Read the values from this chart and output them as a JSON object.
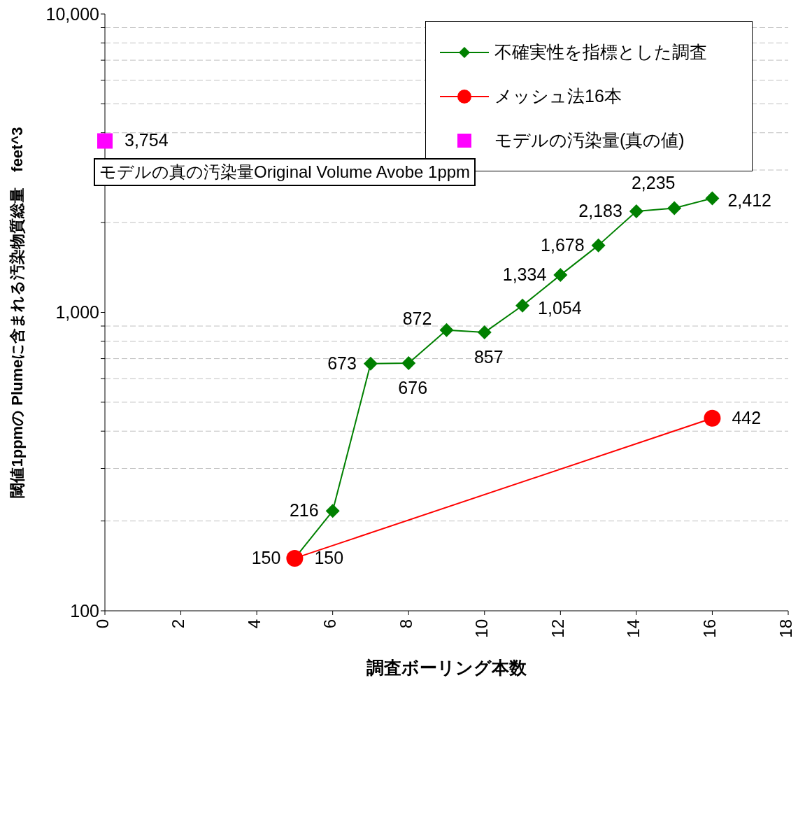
{
  "chart_data": {
    "type": "line",
    "xlabel": "調査ボーリング本数",
    "ylabel": "閾値1ppmの Plumeに含まれる汚染物質総量　feet^3",
    "log": "y",
    "xlim": [
      0,
      18
    ],
    "xticks": [
      0,
      2,
      4,
      6,
      8,
      10,
      12,
      14,
      16,
      18
    ],
    "ylim": [
      100,
      10000
    ],
    "yticks": [
      {
        "value": 100,
        "label": "100"
      },
      {
        "value": 200,
        "label": null
      },
      {
        "value": 300,
        "label": null
      },
      {
        "value": 400,
        "label": null
      },
      {
        "value": 500,
        "label": null
      },
      {
        "value": 600,
        "label": null
      },
      {
        "value": 700,
        "label": null
      },
      {
        "value": 800,
        "label": null
      },
      {
        "value": 900,
        "label": null
      },
      {
        "value": 1000,
        "label": "1,000"
      },
      {
        "value": 2000,
        "label": null
      },
      {
        "value": 3000,
        "label": null
      },
      {
        "value": 4000,
        "label": null
      },
      {
        "value": 5000,
        "label": null
      },
      {
        "value": 6000,
        "label": null
      },
      {
        "value": 7000,
        "label": null
      },
      {
        "value": 8000,
        "label": null
      },
      {
        "value": 9000,
        "label": null
      },
      {
        "value": 10000,
        "label": "10,000"
      }
    ],
    "grid": "y",
    "legend": "top right",
    "annotations": [
      "モデルの真の汚染量Original Volume Avobe 1ppm"
    ],
    "series": [
      {
        "name": "不確実性を指標とした調査",
        "color": "#008000",
        "marker": "diamond",
        "x": [
          5,
          6,
          7,
          8,
          9,
          10,
          11,
          12,
          13,
          14,
          15,
          16
        ],
        "values": [
          150,
          216,
          673,
          676,
          872,
          857,
          1054,
          1334,
          1678,
          2183,
          2235,
          2412
        ],
        "value_labels": [
          "150",
          "216",
          "673",
          "676",
          "872",
          "857",
          "1,054",
          "1,334",
          "1,678",
          "2,183",
          "2,235",
          "2,412"
        ]
      },
      {
        "name": "メッシュ法16本",
        "color": "#ff0000",
        "marker": "circle",
        "x": [
          5,
          16
        ],
        "values": [
          150,
          442
        ],
        "value_labels": [
          "150",
          "442"
        ]
      },
      {
        "name": "モデルの汚染量(真の値)",
        "type": "scatter",
        "color": "#ff00ff",
        "marker": "square",
        "x": [
          0
        ],
        "values": [
          3754
        ],
        "value_labels": [
          "3,754"
        ]
      }
    ]
  }
}
